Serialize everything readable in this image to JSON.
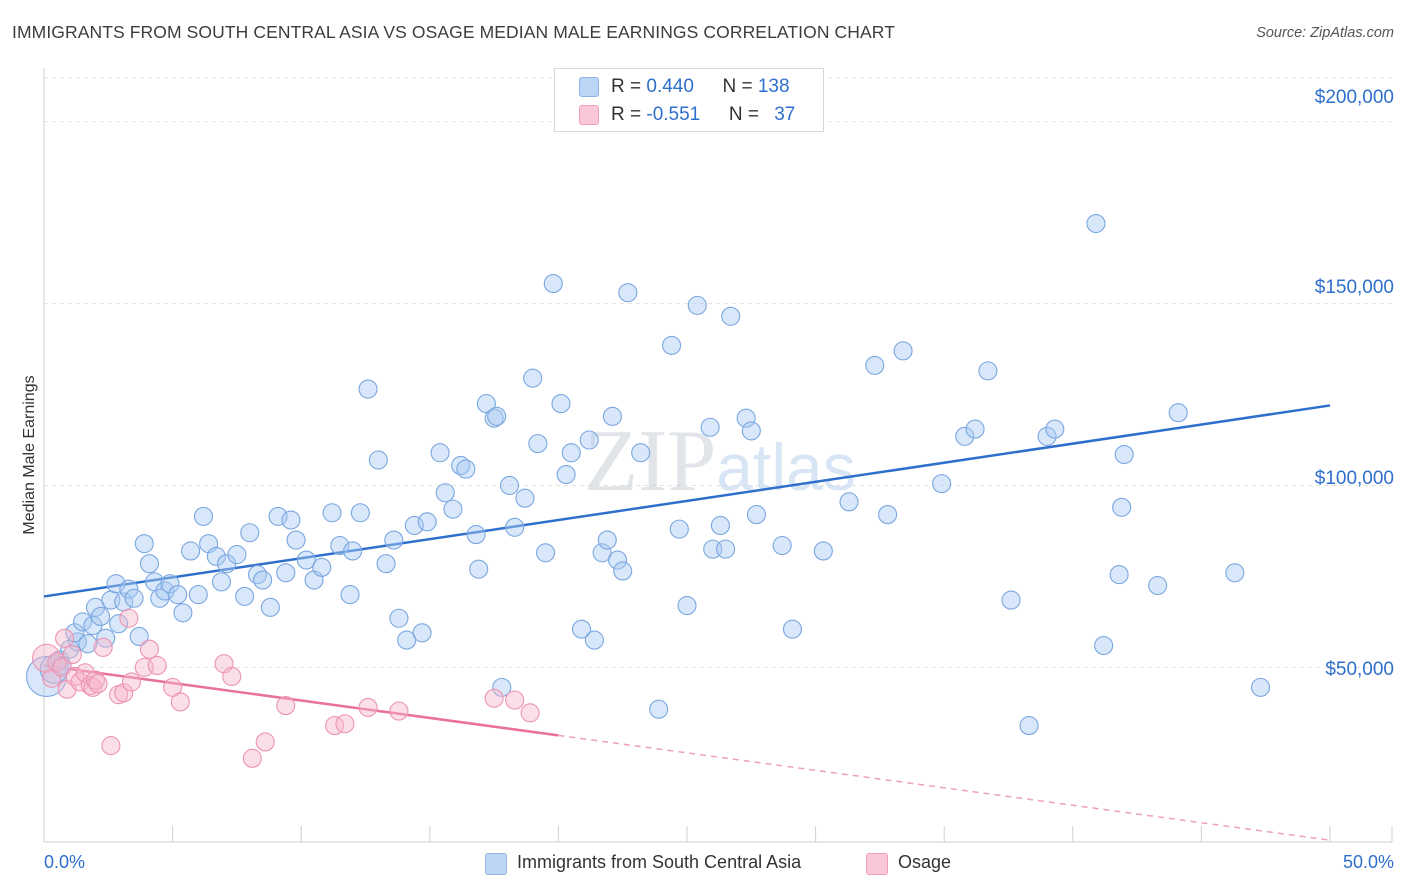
{
  "title": "IMMIGRANTS FROM SOUTH CENTRAL ASIA VS OSAGE MEDIAN MALE EARNINGS CORRELATION CHART",
  "source": "Source: ZipAtlas.com",
  "colors": {
    "blue": "#2f6fcc",
    "blue_fill": "#a9c9f2",
    "pink": "#e8729b",
    "pink_fill": "#f7b7cb",
    "grid": "#e2e2e2"
  },
  "legend": {
    "rows": [
      {
        "r_label": "R = ",
        "r_value": "0.440",
        "n_label": "N = ",
        "n_value": "138",
        "color": "#a9c9f2"
      },
      {
        "r_label": "R = ",
        "r_value": "-0.551",
        "n_label": "N = ",
        "n_value": "37",
        "color": "#f7b7cb"
      }
    ]
  },
  "bottom_legend": [
    "Immigrants from South Central Asia",
    "Osage"
  ],
  "chart_data": {
    "type": "scatter",
    "title": "IMMIGRANTS FROM SOUTH CENTRAL ASIA VS OSAGE MEDIAN MALE EARNINGS CORRELATION CHART",
    "xlabel": "",
    "ylabel": "Median Male Earnings",
    "xlim": [
      0,
      50
    ],
    "ylim": [
      2000,
      212000
    ],
    "x_tick_labels": [
      "0.0%",
      "50.0%"
    ],
    "y_ticks": [
      50000,
      100000,
      150000,
      200000
    ],
    "y_tick_labels": [
      "$50,000",
      "$100,000",
      "$150,000",
      "$200,000"
    ],
    "grid": true,
    "watermark": "ZIPatlas",
    "series": [
      {
        "name": "Immigrants from South Central Asia",
        "color": "#2f6fcc",
        "R": 0.44,
        "N": 138,
        "trend": {
          "x": [
            0,
            50
          ],
          "y": [
            69500,
            122000
          ],
          "dashed_from": null
        },
        "points": [
          [
            0.1,
            47500
          ],
          [
            0.4,
            49500
          ],
          [
            0.6,
            52000
          ],
          [
            0.7,
            50500
          ],
          [
            1.0,
            55000
          ],
          [
            1.3,
            57000
          ],
          [
            1.2,
            59500
          ],
          [
            1.5,
            62500
          ],
          [
            1.7,
            56500
          ],
          [
            1.9,
            61500
          ],
          [
            2.0,
            66500
          ],
          [
            2.2,
            64000
          ],
          [
            2.4,
            58000
          ],
          [
            2.6,
            68500
          ],
          [
            2.8,
            73000
          ],
          [
            2.9,
            62000
          ],
          [
            3.1,
            68000
          ],
          [
            3.3,
            71500
          ],
          [
            3.5,
            69000
          ],
          [
            3.7,
            58500
          ],
          [
            3.9,
            84000
          ],
          [
            4.1,
            78500
          ],
          [
            4.3,
            73500
          ],
          [
            4.5,
            69000
          ],
          [
            4.7,
            71000
          ],
          [
            4.9,
            73000
          ],
          [
            5.2,
            70000
          ],
          [
            5.4,
            65000
          ],
          [
            5.7,
            82000
          ],
          [
            6.0,
            70000
          ],
          [
            6.2,
            91500
          ],
          [
            6.4,
            84000
          ],
          [
            6.7,
            80500
          ],
          [
            6.9,
            73500
          ],
          [
            7.1,
            78500
          ],
          [
            7.5,
            81000
          ],
          [
            7.8,
            69500
          ],
          [
            8.0,
            87000
          ],
          [
            8.3,
            75500
          ],
          [
            8.5,
            74000
          ],
          [
            8.8,
            66500
          ],
          [
            9.1,
            91500
          ],
          [
            9.4,
            76000
          ],
          [
            9.6,
            90500
          ],
          [
            9.8,
            85000
          ],
          [
            10.2,
            79500
          ],
          [
            10.5,
            74000
          ],
          [
            10.8,
            77500
          ],
          [
            11.2,
            92500
          ],
          [
            11.5,
            83500
          ],
          [
            11.9,
            70000
          ],
          [
            12.0,
            82000
          ],
          [
            12.3,
            92500
          ],
          [
            12.6,
            126500
          ],
          [
            13.0,
            107000
          ],
          [
            13.3,
            78500
          ],
          [
            13.6,
            85000
          ],
          [
            13.8,
            63500
          ],
          [
            14.1,
            57500
          ],
          [
            14.4,
            89000
          ],
          [
            14.7,
            59500
          ],
          [
            14.9,
            90000
          ],
          [
            15.4,
            109000
          ],
          [
            15.6,
            98000
          ],
          [
            15.9,
            93500
          ],
          [
            16.2,
            105500
          ],
          [
            16.4,
            104500
          ],
          [
            16.8,
            86500
          ],
          [
            16.9,
            77000
          ],
          [
            17.2,
            122500
          ],
          [
            17.5,
            118500
          ],
          [
            17.6,
            119000
          ],
          [
            17.8,
            44500
          ],
          [
            18.1,
            100000
          ],
          [
            18.3,
            88500
          ],
          [
            18.7,
            96500
          ],
          [
            19.0,
            129500
          ],
          [
            19.2,
            111500
          ],
          [
            19.5,
            81500
          ],
          [
            19.8,
            155500
          ],
          [
            20.1,
            122500
          ],
          [
            20.3,
            103000
          ],
          [
            20.5,
            109000
          ],
          [
            20.9,
            60500
          ],
          [
            21.2,
            112500
          ],
          [
            21.4,
            57500
          ],
          [
            21.7,
            81500
          ],
          [
            21.9,
            85000
          ],
          [
            22.1,
            119000
          ],
          [
            22.3,
            79500
          ],
          [
            22.5,
            76500
          ],
          [
            22.7,
            153000
          ],
          [
            23.2,
            109000
          ],
          [
            23.9,
            38500
          ],
          [
            24.4,
            138500
          ],
          [
            24.7,
            88000
          ],
          [
            25.0,
            67000
          ],
          [
            25.4,
            149500
          ],
          [
            25.9,
            116000
          ],
          [
            26.0,
            82500
          ],
          [
            26.3,
            89000
          ],
          [
            26.5,
            82500
          ],
          [
            26.7,
            146500
          ],
          [
            27.3,
            118500
          ],
          [
            27.5,
            115000
          ],
          [
            27.7,
            92000
          ],
          [
            28.7,
            83500
          ],
          [
            29.1,
            60500
          ],
          [
            30.3,
            82000
          ],
          [
            31.3,
            95500
          ],
          [
            32.3,
            133000
          ],
          [
            32.8,
            92000
          ],
          [
            33.4,
            137000
          ],
          [
            34.9,
            100500
          ],
          [
            35.8,
            113500
          ],
          [
            36.2,
            115500
          ],
          [
            36.7,
            131500
          ],
          [
            37.6,
            68500
          ],
          [
            38.3,
            34000
          ],
          [
            39.0,
            113500
          ],
          [
            39.3,
            115500
          ],
          [
            40.9,
            172000
          ],
          [
            41.2,
            56000
          ],
          [
            41.8,
            75500
          ],
          [
            41.9,
            94000
          ],
          [
            42.0,
            108500
          ],
          [
            43.3,
            72500
          ],
          [
            44.1,
            120000
          ],
          [
            46.3,
            76000
          ],
          [
            47.3,
            44500
          ]
        ]
      },
      {
        "name": "Osage",
        "color": "#e8729b",
        "R": -0.551,
        "N": 37,
        "trend": {
          "x": [
            0,
            50
          ],
          "y": [
            50500,
            2500
          ],
          "solid_until_x": 20.0
        },
        "points": [
          [
            0.1,
            52500
          ],
          [
            0.3,
            47000
          ],
          [
            0.5,
            51500
          ],
          [
            0.7,
            50000
          ],
          [
            0.8,
            58000
          ],
          [
            0.9,
            44000
          ],
          [
            1.1,
            53500
          ],
          [
            1.2,
            47500
          ],
          [
            1.4,
            46000
          ],
          [
            1.6,
            48500
          ],
          [
            1.8,
            45000
          ],
          [
            1.9,
            44500
          ],
          [
            2.0,
            46500
          ],
          [
            2.1,
            45500
          ],
          [
            2.3,
            55500
          ],
          [
            2.6,
            28500
          ],
          [
            2.9,
            42500
          ],
          [
            3.1,
            43000
          ],
          [
            3.3,
            63500
          ],
          [
            3.4,
            46000
          ],
          [
            3.9,
            50000
          ],
          [
            4.1,
            55000
          ],
          [
            4.4,
            50500
          ],
          [
            5.0,
            44500
          ],
          [
            5.3,
            40500
          ],
          [
            7.0,
            51000
          ],
          [
            7.3,
            47500
          ],
          [
            8.1,
            25000
          ],
          [
            8.6,
            29500
          ],
          [
            9.4,
            39500
          ],
          [
            11.3,
            34000
          ],
          [
            11.7,
            34500
          ],
          [
            12.6,
            39000
          ],
          [
            13.8,
            38000
          ],
          [
            17.5,
            41500
          ],
          [
            18.3,
            41000
          ],
          [
            18.9,
            37500
          ]
        ]
      }
    ]
  }
}
